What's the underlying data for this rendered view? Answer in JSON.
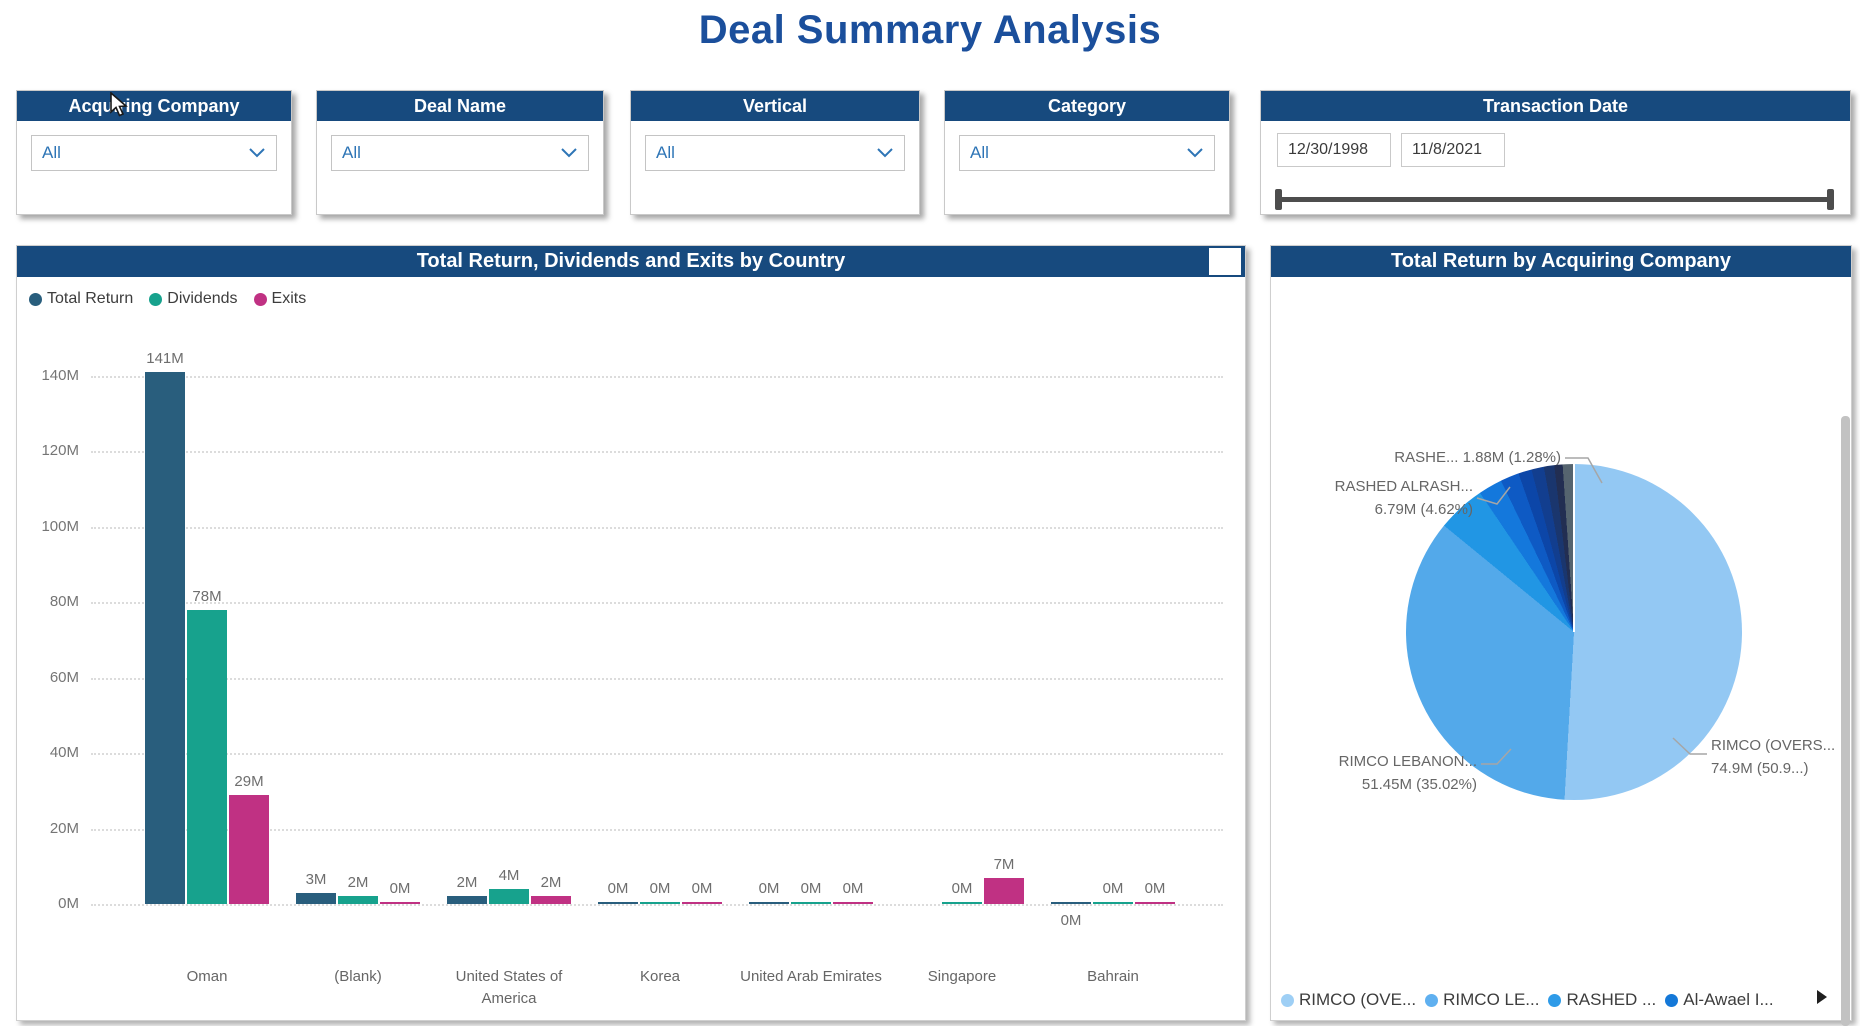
{
  "page": {
    "title": "Deal Summary Analysis"
  },
  "icons": {
    "dropdown_chevron": "chevron-down",
    "legend_more": "right-arrow",
    "cursor": "mouse-pointer"
  },
  "slicers": {
    "acquiring_company": {
      "title": "Acquiring Company",
      "value": "All"
    },
    "deal_name": {
      "title": "Deal Name",
      "value": "All"
    },
    "vertical": {
      "title": "Vertical",
      "value": "All"
    },
    "category": {
      "title": "Category",
      "value": "All"
    },
    "transaction_date": {
      "title": "Transaction Date",
      "start": "12/30/1998",
      "end": "11/8/2021"
    }
  },
  "chart_data": [
    {
      "type": "bar",
      "title": "Total Return, Dividends and Exits by Country",
      "ylabel": "",
      "xlabel": "",
      "ylim": [
        0,
        140
      ],
      "y_tick_step": 20,
      "y_ticks": [
        "0M",
        "20M",
        "40M",
        "60M",
        "80M",
        "100M",
        "120M",
        "140M"
      ],
      "grid": "dotted horizontal",
      "legend_position": "top-left",
      "series": [
        {
          "name": "Total Return",
          "color": "#295e7d"
        },
        {
          "name": "Dividends",
          "color": "#17a28d"
        },
        {
          "name": "Exits",
          "color": "#c03183"
        }
      ],
      "categories": [
        "Oman",
        "(Blank)",
        "United States of America",
        "Korea",
        "United Arab Emirates",
        "Singapore",
        "Bahrain"
      ],
      "values": [
        [
          141,
          78,
          29
        ],
        [
          3,
          2,
          0
        ],
        [
          2,
          4,
          2
        ],
        [
          0,
          0,
          0
        ],
        [
          0,
          0,
          0
        ],
        [
          null,
          0,
          7
        ],
        [
          0,
          0,
          0
        ]
      ],
      "bar_labels": [
        [
          "141M",
          "78M",
          "29M"
        ],
        [
          "3M",
          "2M",
          "0M"
        ],
        [
          "2M",
          "4M",
          "2M"
        ],
        [
          "0M",
          "0M",
          "0M"
        ],
        [
          "0M",
          "0M",
          "0M"
        ],
        [
          null,
          "0M",
          "7M"
        ],
        [
          "0M",
          "0M",
          "0M"
        ]
      ],
      "labels_below_axis": [
        [
          6,
          0
        ]
      ]
    },
    {
      "type": "pie",
      "title": "Total Return by Acquiring Company",
      "legend_position": "bottom",
      "slices": [
        {
          "label": "RIMCO (OVERS...",
          "value_text": "74.9M (50.9...)",
          "pct": 50.9,
          "color": "#93c8f3"
        },
        {
          "label": "RIMCO LEBANON...",
          "value_text": "51.45M (35.02%)",
          "pct": 35.02,
          "color": "#53a9ea"
        },
        {
          "label": "RASHED ALRASH...",
          "value_text": "6.79M (4.62%)",
          "pct": 4.62,
          "color": "#2196e4"
        },
        {
          "label": null,
          "pct": 2.3,
          "color": "#1478dc"
        },
        {
          "label": null,
          "pct": 1.8,
          "color": "#0e5ac4"
        },
        {
          "label": "RASHE...",
          "value_text": "1.88M (1.28%)",
          "pct": 1.28,
          "color": "#0c46a8"
        },
        {
          "label": null,
          "pct": 1.2,
          "color": "#123e8f"
        },
        {
          "label": null,
          "pct": 1.0,
          "color": "#1a366e"
        },
        {
          "label": null,
          "pct": 0.8,
          "color": "#222e52"
        },
        {
          "label": null,
          "pct": 1.08,
          "color": "#55646f"
        }
      ],
      "callouts": [
        {
          "line1": "RASHE... 1.88M (1.28%)",
          "line2": ""
        },
        {
          "line1": "RASHED ALRASH...",
          "line2": "6.79M (4.62%)"
        },
        {
          "line1": "RIMCO (OVERS...",
          "line2": "74.9M (50.9...)"
        },
        {
          "line1": "RIMCO LEBANON...",
          "line2": "51.45M (35.02%)"
        }
      ],
      "legend": [
        {
          "label": "RIMCO (OVE...",
          "color": "#9ecff5"
        },
        {
          "label": "RIMCO LE...",
          "color": "#5fb0f0"
        },
        {
          "label": "RASHED ...",
          "color": "#2e9be8"
        },
        {
          "label": "Al-Awael I...",
          "color": "#1478d8"
        }
      ]
    }
  ]
}
